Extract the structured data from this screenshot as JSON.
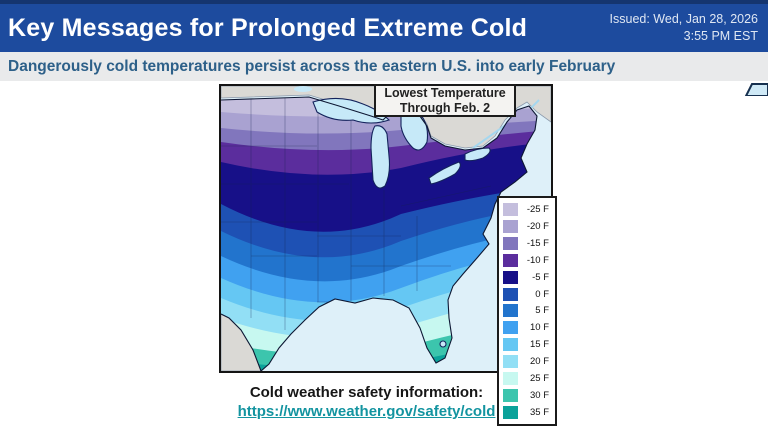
{
  "header": {
    "title": "Key Messages for Prolonged Extreme Cold",
    "issued_line1": "Issued: Wed, Jan 28, 2026",
    "issued_line2": "3:55 PM EST",
    "bg_color": "#1d4b9e"
  },
  "subtitle": {
    "text": "Dangerously cold temperatures persist across the eastern U.S. into early February",
    "text_color": "#2d6089"
  },
  "map": {
    "title_line1": "Lowest Temperature",
    "title_line2": "Through Feb. 2",
    "ocean_color": "#def0f9",
    "neighbor_land_color": "#dad9d5",
    "lake_color": "#c6e9f8"
  },
  "legend": {
    "items": [
      {
        "label": "-25 F",
        "color": "#c4bedd"
      },
      {
        "label": "-20 F",
        "color": "#a9a2d1"
      },
      {
        "label": "-15 F",
        "color": "#8176bd"
      },
      {
        "label": "-10 F",
        "color": "#5b2d9d"
      },
      {
        "label": "-5 F",
        "color": "#171088"
      },
      {
        "label": "0 F",
        "color": "#1e51b4"
      },
      {
        "label": "5 F",
        "color": "#2274cd"
      },
      {
        "label": "10 F",
        "color": "#40a1f0"
      },
      {
        "label": "15 F",
        "color": "#65c7f3"
      },
      {
        "label": "20 F",
        "color": "#92dff5"
      },
      {
        "label": "25 F",
        "color": "#c7f8f0"
      },
      {
        "label": "30 F",
        "color": "#3cc5ad"
      },
      {
        "label": "35 F",
        "color": "#0ba29a"
      }
    ]
  },
  "footer": {
    "label": "Cold weather safety information:",
    "link": "https://www.weather.gov/safety/cold",
    "link_color": "#1394a0"
  }
}
